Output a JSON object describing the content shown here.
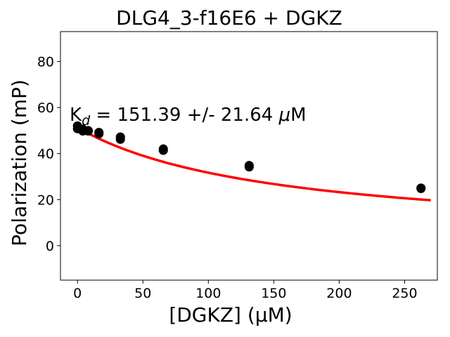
{
  "chart_data": {
    "type": "scatter",
    "title": "DLG4_3-f16E6 + DGKZ",
    "xlabel": "[DGKZ] (μM)",
    "ylabel": "Polarization (mP)",
    "xlim": [
      -13,
      275
    ],
    "ylim": [
      -15,
      93
    ],
    "xticks": [
      0,
      50,
      100,
      150,
      200,
      250
    ],
    "yticks": [
      0,
      20,
      40,
      60,
      80
    ],
    "xtick_labels": [
      "0",
      "50",
      "100",
      "150",
      "200",
      "250"
    ],
    "ytick_labels": [
      "0",
      "20",
      "40",
      "60",
      "80"
    ],
    "grid": false,
    "annotation": {
      "prefix": "K",
      "subscript": "d",
      "text": " = 151.39 +/- 21.64 ",
      "unit_italic": "μ",
      "unit": "M",
      "x": -6,
      "y": 57
    },
    "points": [
      {
        "x": 0,
        "y": 52.0
      },
      {
        "x": 0,
        "y": 50.8
      },
      {
        "x": 4.1,
        "y": 50.6
      },
      {
        "x": 4.1,
        "y": 49.8
      },
      {
        "x": 8.2,
        "y": 50.0
      },
      {
        "x": 8.2,
        "y": 49.8
      },
      {
        "x": 16.4,
        "y": 49.2
      },
      {
        "x": 16.4,
        "y": 48.6
      },
      {
        "x": 32.8,
        "y": 47.2
      },
      {
        "x": 32.8,
        "y": 46.2
      },
      {
        "x": 65.6,
        "y": 42.0
      },
      {
        "x": 65.6,
        "y": 41.4
      },
      {
        "x": 131.2,
        "y": 34.8
      },
      {
        "x": 131.2,
        "y": 34.2
      },
      {
        "x": 262.5,
        "y": 25.0
      },
      {
        "x": 262.5,
        "y": 24.8
      }
    ],
    "fit": {
      "color": "#ff0000",
      "x_start": 0,
      "x_end": 270,
      "bottom": 2.0,
      "top": 51.3,
      "kd": 151.39
    },
    "marker_color": "#000000"
  }
}
